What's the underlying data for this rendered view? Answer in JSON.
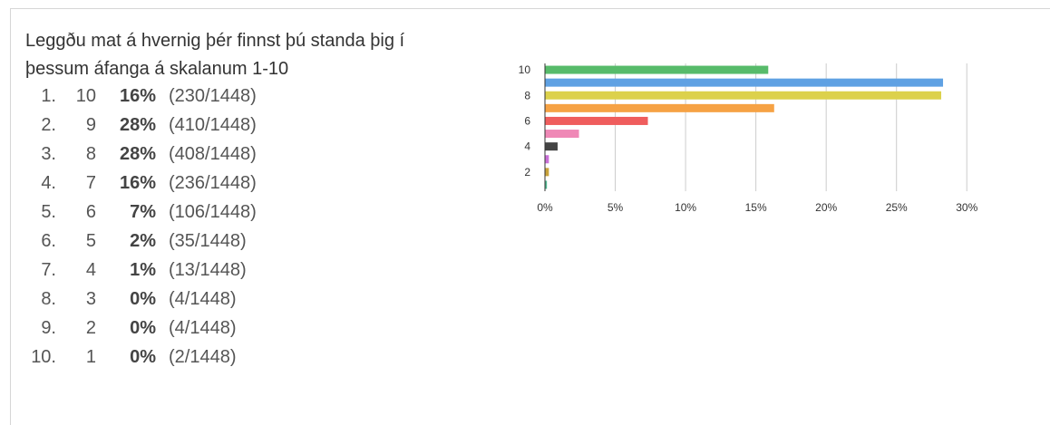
{
  "question": "Leggðu mat á hvernig þér finnst þú standa þig í þessum áfanga á skalanum 1-10",
  "results": [
    {
      "index": "1.",
      "label": "10",
      "pct": "16%",
      "count": "(230/1448)"
    },
    {
      "index": "2.",
      "label": "9",
      "pct": "28%",
      "count": "(410/1448)"
    },
    {
      "index": "3.",
      "label": "8",
      "pct": "28%",
      "count": "(408/1448)"
    },
    {
      "index": "4.",
      "label": "7",
      "pct": "16%",
      "count": "(236/1448)"
    },
    {
      "index": "5.",
      "label": "6",
      "pct": "7%",
      "count": "(106/1448)"
    },
    {
      "index": "6.",
      "label": "5",
      "pct": "2%",
      "count": "(35/1448)"
    },
    {
      "index": "7.",
      "label": "4",
      "pct": "1%",
      "count": "(13/1448)"
    },
    {
      "index": "8.",
      "label": "3",
      "pct": "0%",
      "count": "(4/1448)"
    },
    {
      "index": "9.",
      "label": "2",
      "pct": "0%",
      "count": "(4/1448)"
    },
    {
      "index": "10.",
      "label": "1",
      "pct": "0%",
      "count": "(2/1448)"
    }
  ],
  "chart_data": {
    "type": "bar",
    "orientation": "horizontal",
    "categories": [
      "10",
      "9",
      "8",
      "7",
      "6",
      "5",
      "4",
      "3",
      "2",
      "1"
    ],
    "values": [
      15.88,
      28.31,
      28.18,
      16.3,
      7.32,
      2.42,
      0.9,
      0.28,
      0.28,
      0.14
    ],
    "colors": [
      "#57bb6a",
      "#5fa1e3",
      "#dcd14b",
      "#f6a244",
      "#ef5d5d",
      "#ef88b6",
      "#444444",
      "#c86fd6",
      "#c8a23a",
      "#4db58e"
    ],
    "y_tick_labels": [
      "10",
      "8",
      "6",
      "4",
      "2"
    ],
    "x_ticks": [
      0,
      5,
      10,
      15,
      20,
      25,
      30
    ],
    "x_tick_labels": [
      "0%",
      "5%",
      "10%",
      "15%",
      "20%",
      "25%",
      "30%"
    ],
    "xlim": [
      0,
      30.5
    ],
    "xlabel": "",
    "ylabel": "",
    "grid": true,
    "legend": "none"
  }
}
